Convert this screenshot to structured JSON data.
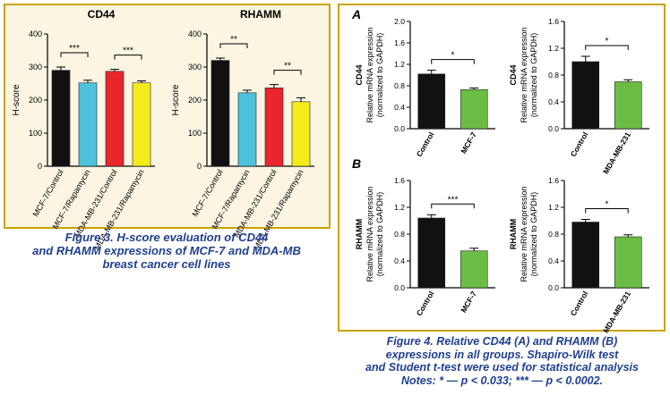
{
  "chart_data": [
    {
      "type": "bar",
      "title": "CD44",
      "ylabel": "H-score",
      "ylim": [
        0,
        400
      ],
      "yticks": [
        0,
        100,
        200,
        300,
        400
      ],
      "categories": [
        "MCF-7/Control",
        "MCF-7/Rapamycin",
        "MDA-MB-231/Control",
        "MDA-MB-231/Rapamycin"
      ],
      "values": [
        290,
        252,
        287,
        252
      ],
      "errors": [
        10,
        8,
        6,
        6
      ],
      "colors": [
        "#111111",
        "#4fc1dc",
        "#e8262b",
        "#f5ec1b"
      ],
      "significance": [
        {
          "from": 0,
          "to": 1,
          "label": "***"
        },
        {
          "from": 2,
          "to": 3,
          "label": "***"
        }
      ]
    },
    {
      "type": "bar",
      "title": "RHAMM",
      "ylabel": "H-score",
      "ylim": [
        0,
        400
      ],
      "yticks": [
        0,
        100,
        200,
        300,
        400
      ],
      "categories": [
        "MCF-7/Control",
        "MCF-7/Rapamycin",
        "MDA-MB-231/Control",
        "MDA-MB-231/Rapamycin"
      ],
      "values": [
        320,
        222,
        237,
        195
      ],
      "errors": [
        7,
        8,
        10,
        12
      ],
      "colors": [
        "#111111",
        "#4fc1dc",
        "#e8262b",
        "#f5ec1b"
      ],
      "significance": [
        {
          "from": 0,
          "to": 1,
          "label": "**"
        },
        {
          "from": 2,
          "to": 3,
          "label": "**"
        }
      ]
    },
    {
      "type": "bar",
      "panel": "A",
      "title": "CD44",
      "ylabel": "Relative mRNA expression (normalized to GAPDH)",
      "ylim": [
        0,
        2.0
      ],
      "yticks": [
        "0.0",
        "0.4",
        "0.8",
        "1.2",
        "1.6",
        "2.0"
      ],
      "categories": [
        "Control",
        "MCF-7"
      ],
      "values": [
        1.02,
        0.73
      ],
      "errors": [
        0.07,
        0.03
      ],
      "colors": [
        "#111111",
        "#6cbd45"
      ],
      "significance": [
        {
          "from": 0,
          "to": 1,
          "label": "*"
        }
      ]
    },
    {
      "type": "bar",
      "title": "CD44",
      "ylabel": "Relative mRNA expression (normalized to GAPDH)",
      "ylim": [
        0,
        1.6
      ],
      "yticks": [
        "0.0",
        "0.4",
        "0.8",
        "1.2",
        "1.6"
      ],
      "categories": [
        "Control",
        "MDA-MB-231"
      ],
      "values": [
        1.0,
        0.7
      ],
      "errors": [
        0.08,
        0.03
      ],
      "colors": [
        "#111111",
        "#6cbd45"
      ],
      "significance": [
        {
          "from": 0,
          "to": 1,
          "label": "*"
        }
      ]
    },
    {
      "type": "bar",
      "panel": "B",
      "title": "RHAMM",
      "ylabel": "Relative mRNA expression (normalized to GAPDH)",
      "ylim": [
        0,
        1.6
      ],
      "yticks": [
        "0.0",
        "0.4",
        "0.8",
        "1.2",
        "1.6"
      ],
      "categories": [
        "Control",
        "MCF-7"
      ],
      "values": [
        1.04,
        0.55
      ],
      "errors": [
        0.05,
        0.04
      ],
      "colors": [
        "#111111",
        "#6cbd45"
      ],
      "significance": [
        {
          "from": 0,
          "to": 1,
          "label": "***"
        }
      ]
    },
    {
      "type": "bar",
      "title": "RHAMM",
      "ylabel": "Relative mRNA expression (normalized to GAPDH)",
      "ylim": [
        0,
        1.6
      ],
      "yticks": [
        "0.0",
        "0.4",
        "0.8",
        "1.2",
        "1.6"
      ],
      "categories": [
        "Control",
        "MDA-MB-231"
      ],
      "values": [
        0.98,
        0.76
      ],
      "errors": [
        0.04,
        0.03
      ],
      "colors": [
        "#111111",
        "#6cbd45"
      ],
      "significance": [
        {
          "from": 0,
          "to": 1,
          "label": "*"
        }
      ]
    }
  ],
  "captions": {
    "fig3": [
      "Figure 3. H-score evaluation of CD44",
      "and RHAMM expressions of MCF-7 and MDA-MB",
      "breast cancer cell lines"
    ],
    "fig4": [
      "Figure 4. Relative CD44 (A) and RHAMM (B)",
      "expressions in all groups. Shapiro-Wilk test",
      "and Student t-test were used for statistical analysis",
      "Notes: * — p < 0.033; *** — p < 0.0002."
    ]
  },
  "panel_letters": {
    "a": "A",
    "b": "B"
  }
}
